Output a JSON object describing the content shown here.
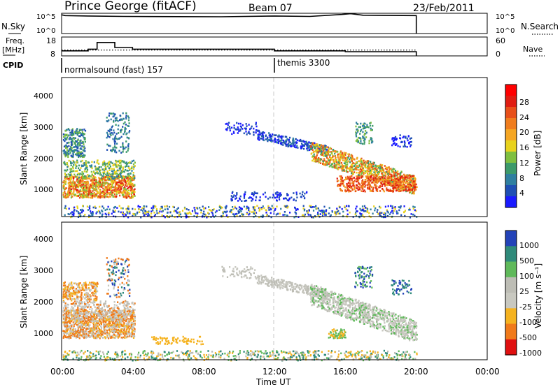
{
  "header": {
    "station": "Prince George (fitACF)",
    "beam": "Beam 07",
    "date": "23/Feb/2011"
  },
  "time_axis": {
    "label": "Time UT",
    "ticks": [
      "00:00",
      "04:00",
      "08:00",
      "12:00",
      "16:00",
      "20:00",
      "00:00"
    ],
    "marker_time_hours": 12
  },
  "panels": {
    "nsky": {
      "left_label": "N.Sky",
      "left_ticks": [
        "10^5",
        "10^0"
      ],
      "right_ticks": [
        "10^5",
        "10^0"
      ],
      "right_label": "N.Search"
    },
    "freq": {
      "left_label_1": "Freq.",
      "left_label_2": "[MHz]",
      "left_ticks": [
        "18",
        "8"
      ],
      "right_ticks": [
        "60",
        "0"
      ],
      "right_label": "Nave"
    },
    "cpid": {
      "label": "CPID",
      "mode_1": "normalsound (fast) 157",
      "mode_2": "themis 3300"
    },
    "power": {
      "ylabel": "Slant Range [km]",
      "yticks": [
        "4000",
        "3000",
        "2000",
        "1000"
      ],
      "colorbar_label": "Power [dB]",
      "colorbar_ticks": [
        "28",
        "24",
        "20",
        "16",
        "12",
        "8",
        "4"
      ]
    },
    "velocity": {
      "ylabel": "Slant Range [km]",
      "yticks": [
        "4000",
        "3000",
        "2000",
        "1000"
      ],
      "colorbar_label": "Velocity [m s⁻¹]",
      "colorbar_ticks": [
        "1000",
        "500",
        "100",
        "25",
        "-25",
        "-100",
        "-500",
        "-1000"
      ]
    }
  },
  "colors": {
    "power_scale": [
      "#1a1aff",
      "#1f4fb4",
      "#2f7fa0",
      "#3c9a6a",
      "#7fbf3f",
      "#e8d21d",
      "#f5a623",
      "#f07d1e",
      "#e8501a",
      "#e01d12",
      "#ff0000"
    ],
    "velocity_scale": [
      "#e01010",
      "#f07a1a",
      "#f5b21f",
      "#c8c8c0",
      "#bdbdb5",
      "#5fb95a",
      "#2f8a7a",
      "#2343b8"
    ],
    "marker_line": "#c8c8c8"
  },
  "chart_data": [
    {
      "type": "line",
      "title": "N.Sky / N.Search",
      "x": [
        0,
        0.2,
        1.5,
        3.5,
        5,
        9,
        12,
        14,
        15.8,
        16.3,
        17,
        20
      ],
      "y_log10_nsky": [
        4.8,
        4.6,
        4.5,
        4.4,
        4.35,
        4.3,
        4.5,
        4.4,
        4.9,
        5.1,
        4.7,
        4.6
      ],
      "xlim": [
        0,
        24
      ]
    },
    {
      "type": "line",
      "title": "Freq. / Nave",
      "series": [
        {
          "name": "Freq.",
          "x": [
            0,
            1,
            1.5,
            2,
            2.5,
            3,
            3.5,
            4,
            8,
            12,
            12.5,
            16,
            20
          ],
          "values": [
            11,
            11,
            12,
            16,
            16,
            13,
            13,
            12,
            12,
            11,
            11,
            10.5,
            10.5
          ]
        },
        {
          "name": "Nave",
          "x": [
            0,
            20
          ],
          "values": [
            21,
            21
          ]
        }
      ],
      "xlim": [
        0,
        24
      ]
    },
    {
      "type": "heatmap",
      "title": "Power",
      "ylabel": "Slant Range [km]",
      "ylim": [
        180,
        4600
      ],
      "xlim": [
        0,
        24
      ],
      "colorbar_label": "Power [dB]",
      "zlim": [
        0,
        32
      ]
    },
    {
      "type": "heatmap",
      "title": "Velocity",
      "ylabel": "Slant Range [km]",
      "ylim": [
        180,
        4600
      ],
      "xlim": [
        0,
        24
      ],
      "colorbar_label": "Velocity [m s⁻¹]",
      "zlim": [
        -1000,
        1000
      ]
    }
  ]
}
